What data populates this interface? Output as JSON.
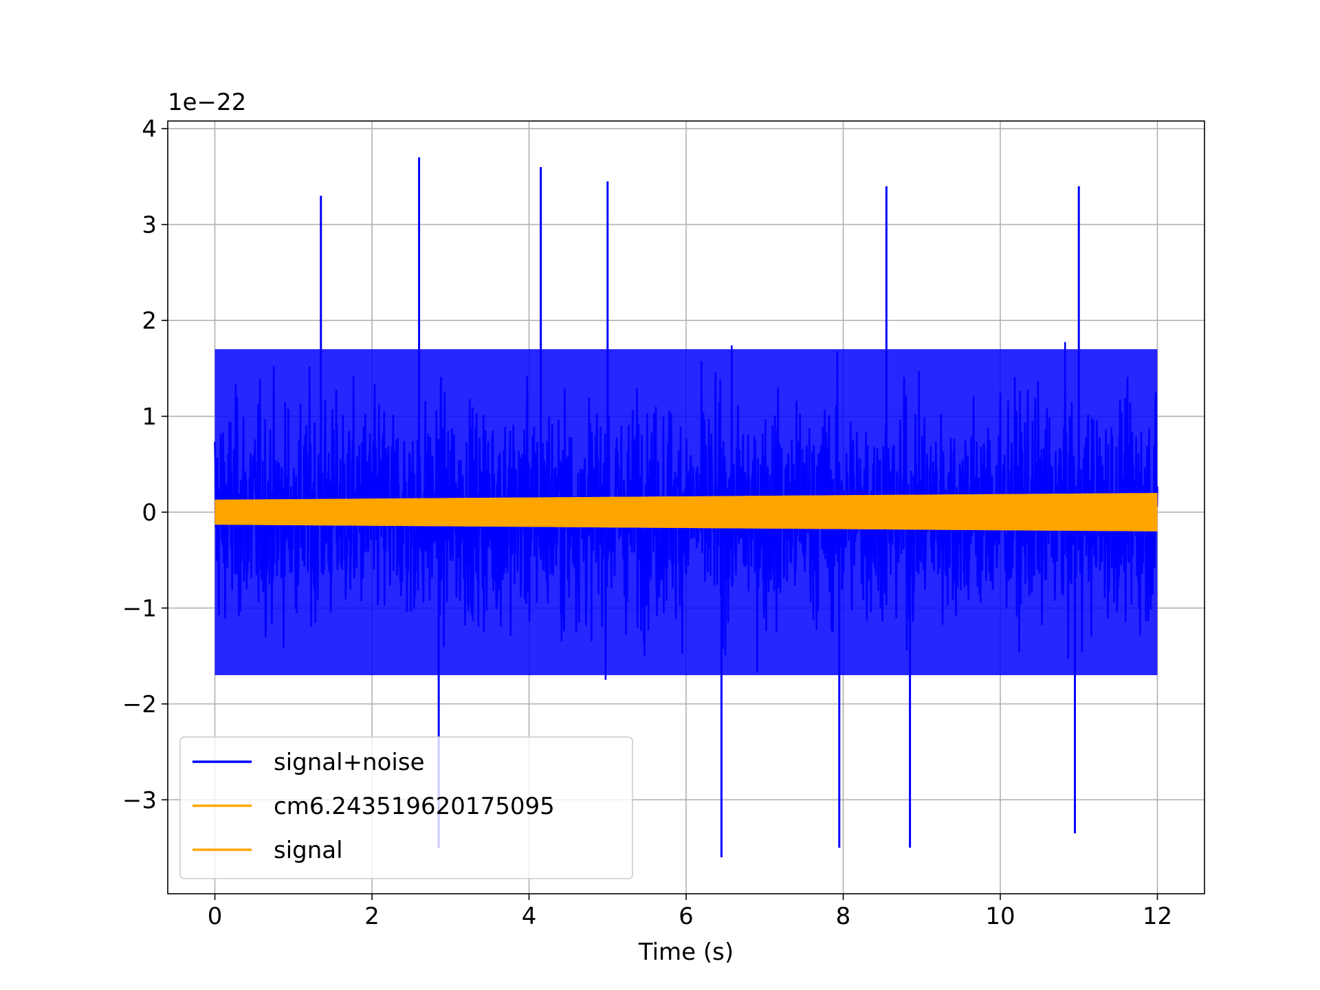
{
  "chart_data": {
    "type": "line",
    "title": "",
    "xlabel": "Time (s)",
    "ylabel": "",
    "offset_text": "1e−22",
    "xlim": [
      -0.6,
      12.6
    ],
    "ylim": [
      -3.98,
      4.08
    ],
    "xticks": [
      0,
      2,
      4,
      6,
      8,
      10,
      12
    ],
    "xtick_labels": [
      "0",
      "2",
      "4",
      "6",
      "8",
      "10",
      "12"
    ],
    "yticks": [
      -3,
      -2,
      -1,
      0,
      1,
      2,
      3,
      4
    ],
    "ytick_labels": [
      "−3",
      "−2",
      "−1",
      "0",
      "1",
      "2",
      "3",
      "4"
    ],
    "grid": true,
    "legend_position": "lower-left",
    "series": [
      {
        "name": "signal+noise",
        "color": "#0000ff",
        "x_range": [
          0,
          12
        ],
        "y_min": -3.6,
        "y_max": 3.7,
        "typical_band": [
          -1.7,
          1.7
        ],
        "description_values": {
          "peaks": [
            [
              2.6,
              3.7
            ],
            [
              4.15,
              3.6
            ],
            [
              5.0,
              3.45
            ],
            [
              11.0,
              3.4
            ],
            [
              1.35,
              3.3
            ],
            [
              8.55,
              3.4
            ]
          ],
          "troughs": [
            [
              6.45,
              -3.6
            ],
            [
              7.95,
              -3.5
            ],
            [
              8.85,
              -3.5
            ],
            [
              10.95,
              -3.35
            ],
            [
              2.85,
              -3.5
            ]
          ]
        }
      },
      {
        "name": "cm6.243519620175095",
        "color": "#ffa500",
        "x_range": [
          0,
          12
        ],
        "envelope_start": 0.13,
        "envelope_end": 0.2
      },
      {
        "name": "signal",
        "color": "#ffa500",
        "x_range": [
          0,
          12
        ],
        "envelope_start": 0.13,
        "envelope_end": 0.2
      }
    ]
  }
}
